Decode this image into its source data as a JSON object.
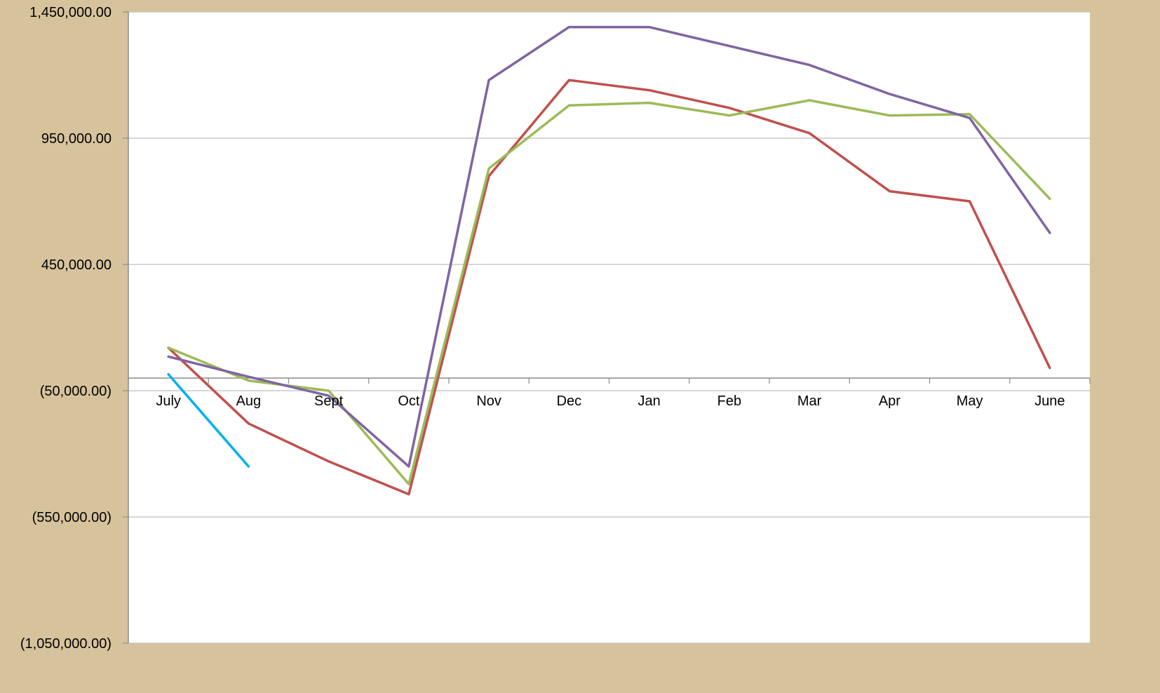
{
  "chart_data": {
    "type": "line",
    "title": "",
    "xlabel": "",
    "ylabel": "",
    "categories": [
      "July",
      "Aug",
      "Sept",
      "Oct",
      "Nov",
      "Dec",
      "Jan",
      "Feb",
      "Mar",
      "Apr",
      "May",
      "June"
    ],
    "ylim": [
      -1050000,
      1450000
    ],
    "yticks": [
      1450000,
      950000,
      450000,
      -50000,
      -550000,
      -1050000
    ],
    "ytick_labels": [
      "1,450,000.00",
      "950,000.00",
      "450,000.00",
      "(50,000.00)",
      "(550,000.00)",
      "(1,050,000.00)"
    ],
    "grid": true,
    "legend": "none",
    "series": [
      {
        "color": "#c0504d",
        "values": [
          120000,
          -180000,
          -330000,
          -460000,
          800000,
          1180000,
          1140000,
          1070000,
          970000,
          740000,
          700000,
          40000
        ]
      },
      {
        "color": "#9bbb59",
        "values": [
          120000,
          -10000,
          -50000,
          -420000,
          830000,
          1080000,
          1090000,
          1040000,
          1100000,
          1040000,
          1045000,
          710000
        ]
      },
      {
        "color": "#8064a2",
        "values": [
          85000,
          5000,
          -70000,
          -350000,
          1180000,
          1390000,
          1390000,
          1315000,
          1240000,
          1125000,
          1030000,
          575000
        ]
      },
      {
        "color": "#00b0f0",
        "values": [
          15000,
          -350000,
          null,
          null,
          null,
          null,
          null,
          null,
          null,
          null,
          null,
          null
        ]
      }
    ]
  }
}
